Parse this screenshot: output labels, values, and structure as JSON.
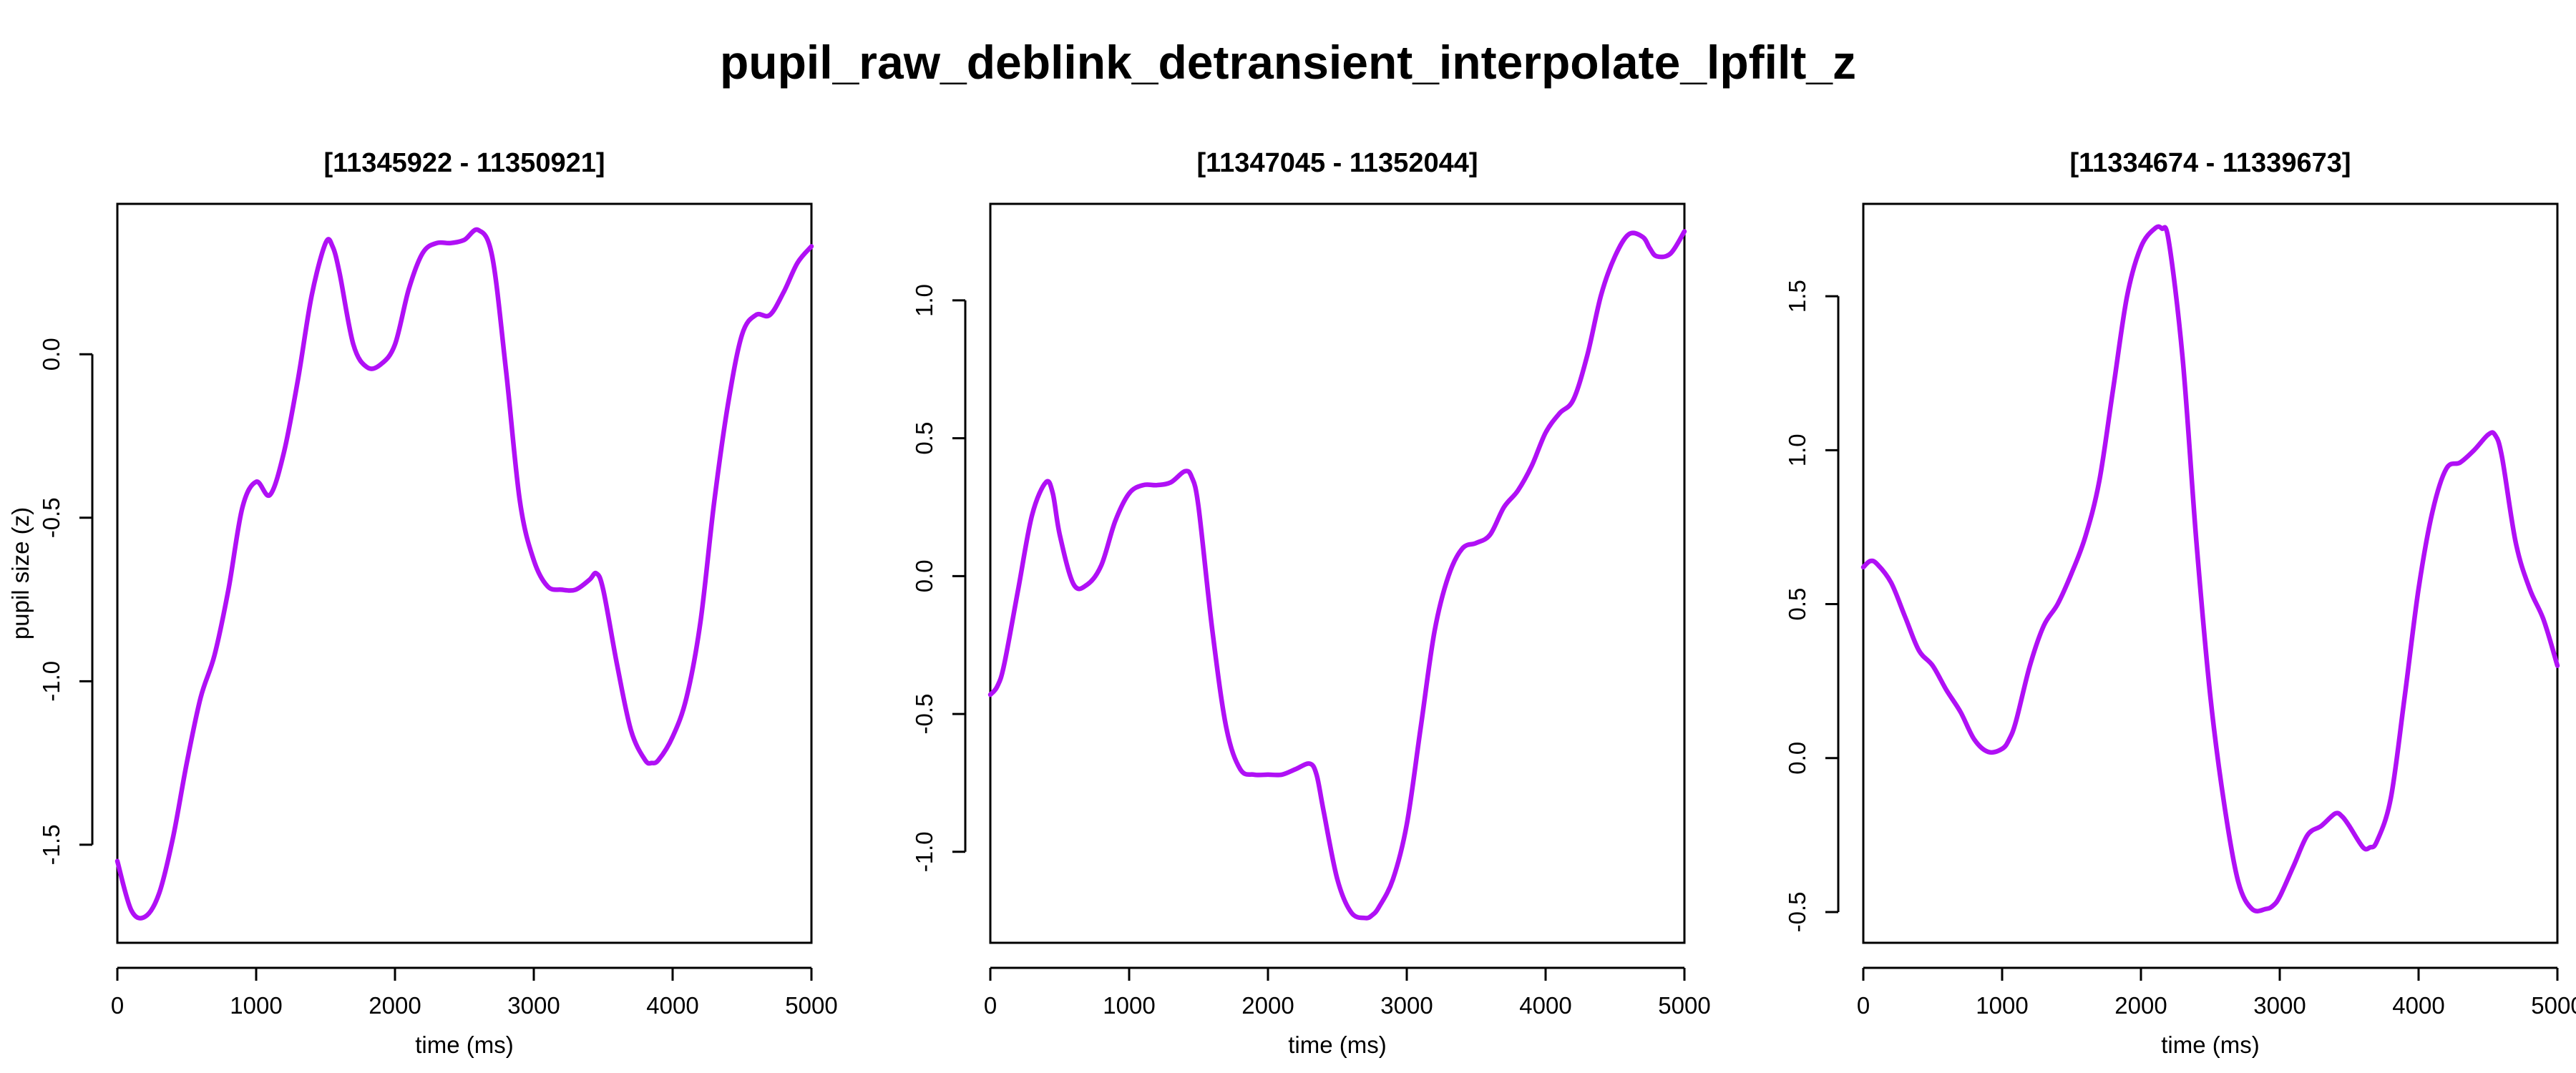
{
  "figure_title": "pupil_raw_deblink_detransient_interpolate_lpfilt_z",
  "line_color": "#B010F5",
  "chart_data": [
    {
      "type": "line",
      "title": "[11345922 - 11350921]",
      "xlabel": "time (ms)",
      "ylabel": "pupil size (z)",
      "xlim": [
        0,
        5000
      ],
      "ylim": [
        -1.8,
        0.46
      ],
      "xticks": [
        0,
        1000,
        2000,
        3000,
        4000,
        5000
      ],
      "xtick_labels": [
        "0",
        "1000",
        "2000",
        "3000",
        "4000",
        "5000"
      ],
      "yticks": [
        -1.5,
        -1.0,
        -0.5,
        0.0
      ],
      "ytick_labels": [
        "-1.5",
        "-1.0",
        "-0.5",
        "0.0"
      ],
      "series": [
        {
          "x": [
            0,
            100,
            200,
            300,
            400,
            500,
            600,
            700,
            800,
            900,
            1000,
            1100,
            1200,
            1300,
            1400,
            1500,
            1550,
            1600,
            1700,
            1800,
            1900,
            2000,
            2100,
            2200,
            2300,
            2400,
            2500,
            2600,
            2700,
            2800,
            2900,
            3000,
            3100,
            3200,
            3300,
            3400,
            3450,
            3500,
            3600,
            3700,
            3800,
            3850,
            3900,
            4000,
            4100,
            4200,
            4300,
            4400,
            4500,
            4600,
            4700,
            4800,
            4900,
            5000
          ],
          "y": [
            -1.55,
            -1.7,
            -1.72,
            -1.65,
            -1.48,
            -1.25,
            -1.05,
            -0.92,
            -0.72,
            -0.47,
            -0.39,
            -0.43,
            -0.3,
            -0.08,
            0.18,
            0.34,
            0.33,
            0.25,
            0.03,
            -0.04,
            -0.03,
            0.03,
            0.2,
            0.31,
            0.34,
            0.34,
            0.35,
            0.38,
            0.3,
            -0.05,
            -0.45,
            -0.63,
            -0.71,
            -0.72,
            -0.72,
            -0.69,
            -0.67,
            -0.72,
            -0.95,
            -1.15,
            -1.24,
            -1.25,
            -1.24,
            -1.17,
            -1.05,
            -0.82,
            -0.45,
            -0.15,
            0.06,
            0.12,
            0.12,
            0.19,
            0.28,
            0.33
          ]
        }
      ]
    },
    {
      "type": "line",
      "title": "[11347045 - 11352044]",
      "xlabel": "time (ms)",
      "ylabel": "",
      "xlim": [
        0,
        5000
      ],
      "ylim": [
        -1.33,
        1.35
      ],
      "xticks": [
        0,
        1000,
        2000,
        3000,
        4000,
        5000
      ],
      "xtick_labels": [
        "0",
        "1000",
        "2000",
        "3000",
        "4000",
        "5000"
      ],
      "yticks": [
        -1.0,
        -0.5,
        0.0,
        0.5,
        1.0
      ],
      "ytick_labels": [
        "-1.0",
        "-0.5",
        "0.0",
        "0.5",
        "1.0"
      ],
      "series": [
        {
          "x": [
            0,
            50,
            100,
            200,
            300,
            400,
            450,
            500,
            600,
            700,
            800,
            900,
            1000,
            1100,
            1200,
            1300,
            1400,
            1450,
            1500,
            1600,
            1700,
            1800,
            1900,
            2000,
            2100,
            2200,
            2300,
            2350,
            2400,
            2500,
            2600,
            2700,
            2750,
            2800,
            2900,
            3000,
            3100,
            3200,
            3300,
            3400,
            3500,
            3600,
            3700,
            3800,
            3900,
            4000,
            4100,
            4200,
            4300,
            4400,
            4500,
            4600,
            4700,
            4750,
            4800,
            4900,
            5000
          ],
          "y": [
            -0.43,
            -0.4,
            -0.32,
            -0.05,
            0.22,
            0.34,
            0.3,
            0.15,
            -0.03,
            -0.03,
            0.04,
            0.2,
            0.3,
            0.33,
            0.33,
            0.34,
            0.38,
            0.36,
            0.25,
            -0.2,
            -0.55,
            -0.7,
            -0.72,
            -0.72,
            -0.72,
            -0.7,
            -0.68,
            -0.72,
            -0.85,
            -1.1,
            -1.22,
            -1.24,
            -1.23,
            -1.2,
            -1.1,
            -0.9,
            -0.55,
            -0.2,
            0.0,
            0.1,
            0.12,
            0.15,
            0.25,
            0.31,
            0.4,
            0.52,
            0.59,
            0.64,
            0.8,
            1.02,
            1.16,
            1.24,
            1.23,
            1.19,
            1.16,
            1.17,
            1.25
          ]
        }
      ]
    },
    {
      "type": "line",
      "title": "[11334674 - 11339673]",
      "xlabel": "time (ms)",
      "ylabel": "",
      "xlim": [
        0,
        5000
      ],
      "ylim": [
        -0.6,
        1.8
      ],
      "xticks": [
        0,
        1000,
        2000,
        3000,
        4000,
        5000
      ],
      "xtick_labels": [
        "0",
        "1000",
        "2000",
        "3000",
        "4000",
        "5000"
      ],
      "yticks": [
        -0.5,
        0.0,
        0.5,
        1.0,
        1.5
      ],
      "ytick_labels": [
        "-0.5",
        "0.0",
        "0.5",
        "1.0",
        "1.5"
      ],
      "series": [
        {
          "x": [
            0,
            50,
            100,
            200,
            300,
            400,
            500,
            600,
            700,
            800,
            900,
            1000,
            1050,
            1100,
            1200,
            1300,
            1400,
            1500,
            1600,
            1700,
            1800,
            1900,
            2000,
            2100,
            2150,
            2200,
            2300,
            2400,
            2500,
            2600,
            2700,
            2800,
            2900,
            2950,
            3000,
            3100,
            3200,
            3300,
            3400,
            3450,
            3500,
            3600,
            3650,
            3700,
            3800,
            3900,
            4000,
            4100,
            4200,
            4300,
            4400,
            4500,
            4550,
            4600,
            4700,
            4800,
            4900,
            5000
          ],
          "y": [
            0.62,
            0.64,
            0.63,
            0.57,
            0.46,
            0.35,
            0.3,
            0.22,
            0.15,
            0.06,
            0.02,
            0.03,
            0.06,
            0.12,
            0.3,
            0.43,
            0.5,
            0.6,
            0.72,
            0.9,
            1.2,
            1.5,
            1.66,
            1.72,
            1.72,
            1.68,
            1.3,
            0.7,
            0.2,
            -0.15,
            -0.4,
            -0.49,
            -0.49,
            -0.48,
            -0.45,
            -0.35,
            -0.25,
            -0.22,
            -0.18,
            -0.19,
            -0.22,
            -0.29,
            -0.29,
            -0.27,
            -0.13,
            0.2,
            0.55,
            0.8,
            0.94,
            0.96,
            1.0,
            1.05,
            1.05,
            0.98,
            0.7,
            0.55,
            0.45,
            0.3
          ]
        }
      ]
    }
  ]
}
